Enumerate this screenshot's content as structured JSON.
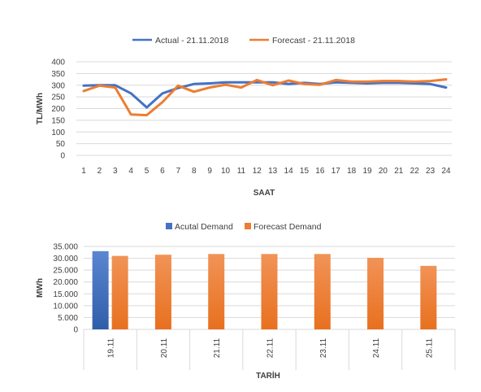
{
  "chart_data": [
    {
      "type": "line",
      "x": [
        "1",
        "2",
        "3",
        "4",
        "5",
        "6",
        "7",
        "8",
        "9",
        "10",
        "11",
        "12",
        "13",
        "14",
        "15",
        "16",
        "17",
        "18",
        "19",
        "20",
        "21",
        "22",
        "23",
        "24"
      ],
      "series": [
        {
          "name": "Actual - 21.11.2018",
          "color": "#4472c4",
          "values": [
            298,
            300,
            300,
            265,
            205,
            265,
            288,
            305,
            308,
            312,
            312,
            312,
            312,
            305,
            310,
            305,
            312,
            310,
            308,
            310,
            310,
            308,
            305,
            290
          ]
        },
        {
          "name": "Forecast - 21.11.2018",
          "color": "#ed7d31",
          "values": [
            275,
            298,
            290,
            175,
            172,
            228,
            298,
            272,
            290,
            302,
            290,
            322,
            300,
            320,
            305,
            302,
            322,
            315,
            315,
            318,
            318,
            315,
            318,
            325
          ]
        }
      ],
      "yticks": [
        "0",
        "50",
        "100",
        "150",
        "200",
        "250",
        "300",
        "350",
        "400"
      ],
      "ylim": [
        0,
        400
      ],
      "xlabel": "SAAT",
      "ylabel": "TL/MWh",
      "legend": "top",
      "grid": true
    },
    {
      "type": "bar",
      "categories": [
        "19.11",
        "20.11",
        "21.11",
        "22.11",
        "23.11",
        "24.11",
        "25.11"
      ],
      "series": [
        {
          "name": "Acutal Demand",
          "color": "#4472c4",
          "values": [
            33000,
            null,
            null,
            null,
            null,
            null,
            null
          ]
        },
        {
          "name": "Forecast Demand",
          "color": "#ed7d31",
          "values": [
            31000,
            31500,
            31800,
            31800,
            31800,
            30200,
            26800
          ]
        }
      ],
      "yticks": [
        "0",
        "5.000",
        "10.000",
        "15.000",
        "20.000",
        "25.000",
        "30.000",
        "35.000"
      ],
      "ylim": [
        0,
        35000
      ],
      "xlabel": "TARİH",
      "ylabel": "MWh",
      "legend": "top",
      "grid": true
    }
  ]
}
